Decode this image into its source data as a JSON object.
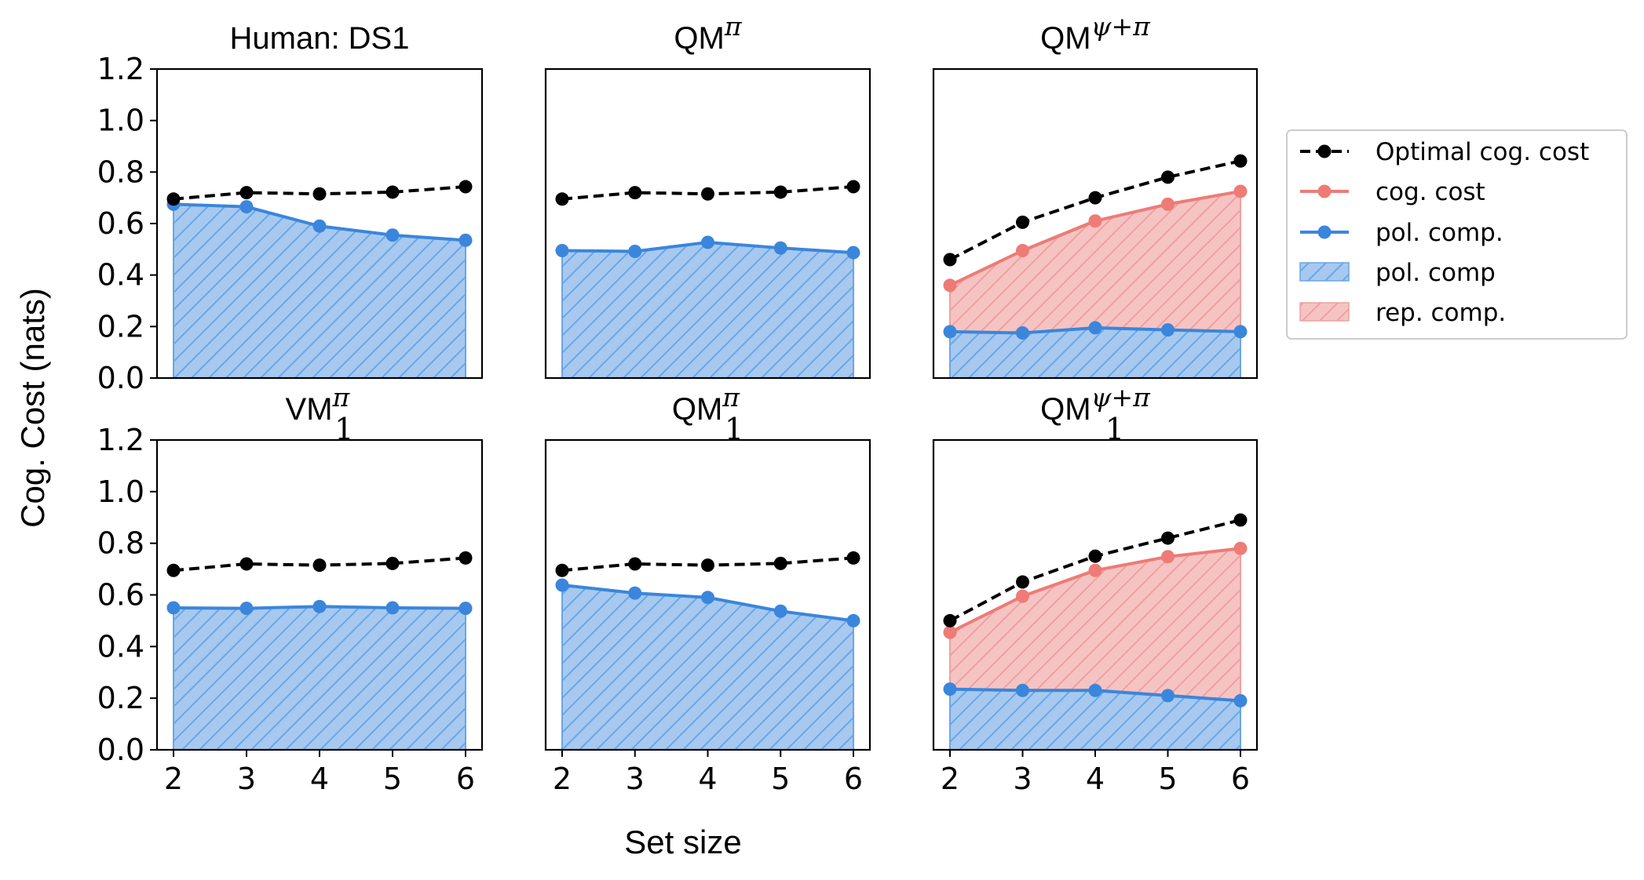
{
  "colors": {
    "optimal": "#000000",
    "cog_cost": "#ee7b76",
    "pol_comp_line": "#3a86dc",
    "pol_comp_fill": "#a7c9ef",
    "pol_comp_hatch": "#6aa6e6",
    "rep_comp_fill": "#f6c3c3",
    "rep_comp_hatch": "#eda0a0"
  },
  "figure": {
    "xlabel": "Set size",
    "ylabel": "Cog. Cost (nats)",
    "yticks": [
      "0.0",
      "0.2",
      "0.4",
      "0.6",
      "0.8",
      "1.0",
      "1.2"
    ],
    "xticks": [
      "2",
      "3",
      "4",
      "5",
      "6"
    ]
  },
  "legend": {
    "optimal": "Optimal cog. cost",
    "cog_cost": "cog. cost",
    "pol_comp_line": "pol. comp.",
    "pol_comp_fill": "pol. comp",
    "rep_comp_fill": "rep. comp."
  },
  "chart_data": [
    {
      "type": "line",
      "title": "Human: DS1",
      "x": [
        2,
        3,
        4,
        5,
        6
      ],
      "ylim": [
        0,
        1.2
      ],
      "series": [
        {
          "name": "Optimal cog. cost",
          "values": [
            0.695,
            0.72,
            0.715,
            0.722,
            0.743
          ]
        },
        {
          "name": "pol. comp.",
          "values": [
            0.675,
            0.665,
            0.59,
            0.555,
            0.535
          ]
        }
      ]
    },
    {
      "type": "line",
      "title": {
        "main": "QM",
        "sup": "π"
      },
      "x": [
        2,
        3,
        4,
        5,
        6
      ],
      "ylim": [
        0,
        1.2
      ],
      "series": [
        {
          "name": "Optimal cog. cost",
          "values": [
            0.695,
            0.72,
            0.715,
            0.722,
            0.743
          ]
        },
        {
          "name": "pol. comp.",
          "values": [
            0.495,
            0.492,
            0.527,
            0.505,
            0.487
          ]
        }
      ]
    },
    {
      "type": "line",
      "title": {
        "main": "QM",
        "sup": "ψ+π"
      },
      "x": [
        2,
        3,
        4,
        5,
        6
      ],
      "ylim": [
        0,
        1.2
      ],
      "series": [
        {
          "name": "Optimal cog. cost",
          "values": [
            0.46,
            0.605,
            0.7,
            0.78,
            0.843
          ]
        },
        {
          "name": "cog. cost",
          "values": [
            0.36,
            0.495,
            0.61,
            0.675,
            0.725
          ]
        },
        {
          "name": "pol. comp.",
          "values": [
            0.18,
            0.175,
            0.195,
            0.187,
            0.18
          ]
        }
      ]
    },
    {
      "type": "line",
      "title": {
        "main": "VM",
        "sup": "π",
        "sub": "1"
      },
      "x": [
        2,
        3,
        4,
        5,
        6
      ],
      "ylim": [
        0,
        1.2
      ],
      "series": [
        {
          "name": "Optimal cog. cost",
          "values": [
            0.695,
            0.72,
            0.715,
            0.722,
            0.743
          ]
        },
        {
          "name": "pol. comp.",
          "values": [
            0.55,
            0.548,
            0.555,
            0.55,
            0.548
          ]
        }
      ]
    },
    {
      "type": "line",
      "title": {
        "main": "QM",
        "sup": "π",
        "sub": "1"
      },
      "x": [
        2,
        3,
        4,
        5,
        6
      ],
      "ylim": [
        0,
        1.2
      ],
      "series": [
        {
          "name": "Optimal cog. cost",
          "values": [
            0.695,
            0.72,
            0.715,
            0.722,
            0.743
          ]
        },
        {
          "name": "pol. comp.",
          "values": [
            0.638,
            0.607,
            0.59,
            0.537,
            0.5
          ]
        }
      ]
    },
    {
      "type": "line",
      "title": {
        "main": "QM",
        "sup": "ψ+π",
        "sub": "1"
      },
      "x": [
        2,
        3,
        4,
        5,
        6
      ],
      "ylim": [
        0,
        1.2
      ],
      "series": [
        {
          "name": "Optimal cog. cost",
          "values": [
            0.5,
            0.65,
            0.75,
            0.82,
            0.89
          ]
        },
        {
          "name": "cog. cost",
          "values": [
            0.455,
            0.595,
            0.695,
            0.748,
            0.78
          ]
        },
        {
          "name": "pol. comp.",
          "values": [
            0.235,
            0.23,
            0.23,
            0.21,
            0.19
          ]
        }
      ]
    }
  ]
}
